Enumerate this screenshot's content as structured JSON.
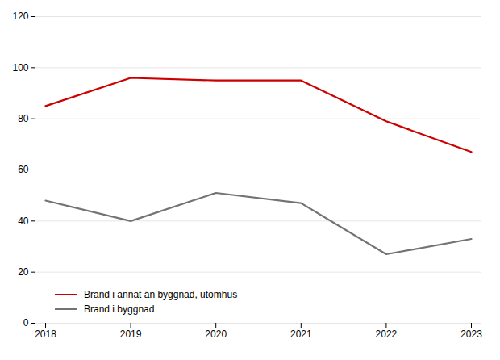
{
  "chart_data": {
    "type": "line",
    "x": [
      2018,
      2019,
      2020,
      2021,
      2022,
      2023
    ],
    "series": [
      {
        "name": "Brand i annat än byggnad, utomhus",
        "color": "#cc0000",
        "values": [
          85,
          96,
          95,
          95,
          79,
          67
        ]
      },
      {
        "name": "Brand i byggnad",
        "color": "#737373",
        "values": [
          48,
          40,
          51,
          47,
          27,
          33
        ]
      }
    ],
    "xlim": [
      2018,
      2023
    ],
    "xticks": [
      2018,
      2019,
      2020,
      2021,
      2022,
      2023
    ],
    "ylim": [
      0,
      120
    ],
    "yticks": [
      0,
      20,
      40,
      60,
      80,
      100,
      120
    ],
    "grid": true,
    "legend": "lower left"
  }
}
